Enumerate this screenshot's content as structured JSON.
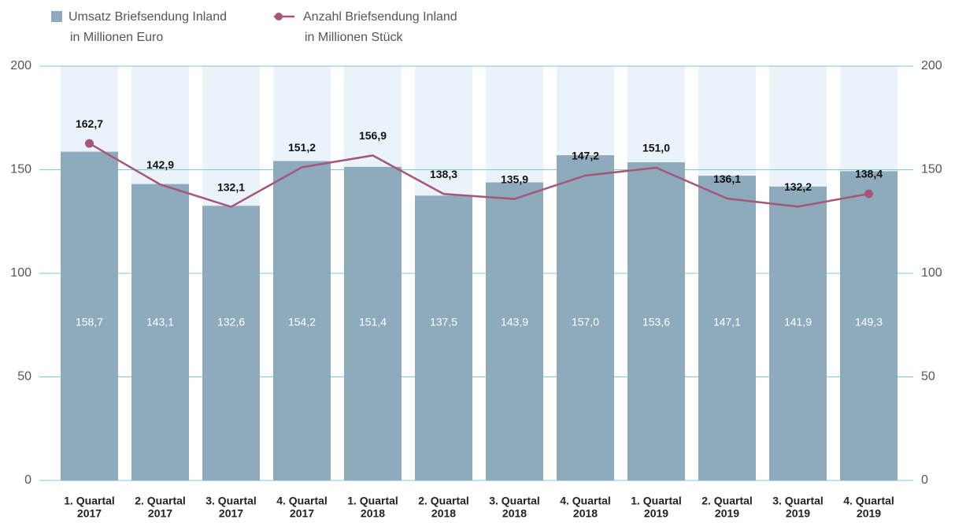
{
  "chart_data": {
    "type": "bar-line",
    "categories": [
      [
        "1. Quartal",
        "2017"
      ],
      [
        "2. Quartal",
        "2017"
      ],
      [
        "3. Quartal",
        "2017"
      ],
      [
        "4. Quartal",
        "2017"
      ],
      [
        "1. Quartal",
        "2018"
      ],
      [
        "2. Quartal",
        "2018"
      ],
      [
        "3. Quartal",
        "2018"
      ],
      [
        "4. Quartal",
        "2018"
      ],
      [
        "1. Quartal",
        "2019"
      ],
      [
        "2. Quartal",
        "2019"
      ],
      [
        "3. Quartal",
        "2019"
      ],
      [
        "4. Quartal",
        "2019"
      ]
    ],
    "series": [
      {
        "name": "Umsatz Briefsendung Inland",
        "unit": "in Millionen Euro",
        "type": "bar",
        "color": "#8eaabd",
        "values": [
          158.7,
          143.1,
          132.6,
          154.2,
          151.4,
          137.5,
          143.9,
          157.0,
          153.6,
          147.1,
          141.9,
          149.3
        ],
        "value_labels": [
          "158,7",
          "143,1",
          "132,6",
          "154,2",
          "151,4",
          "137,5",
          "143,9",
          "157,0",
          "153,6",
          "147,1",
          "141,9",
          "149,3"
        ]
      },
      {
        "name": "Anzahl Briefsendung Inland",
        "unit": "in Millionen Stück",
        "type": "line",
        "axis": "y2",
        "color": "#a5577a",
        "values": [
          162.7,
          142.9,
          132.1,
          151.2,
          156.9,
          138.3,
          135.9,
          147.2,
          151.0,
          136.1,
          132.2,
          138.4
        ],
        "value_labels": [
          "162,7",
          "142,9",
          "132,1",
          "151,2",
          "156,9",
          "138,3",
          "135,9",
          "147,2",
          "151,0",
          "136,1",
          "132,2",
          "138,4"
        ]
      }
    ],
    "ylim": [
      0,
      200
    ],
    "yticks": [
      0,
      50,
      100,
      150,
      200
    ],
    "y2lim": [
      0,
      200
    ],
    "y2ticks": [
      0,
      50,
      100,
      150,
      200
    ],
    "grid": true
  }
}
